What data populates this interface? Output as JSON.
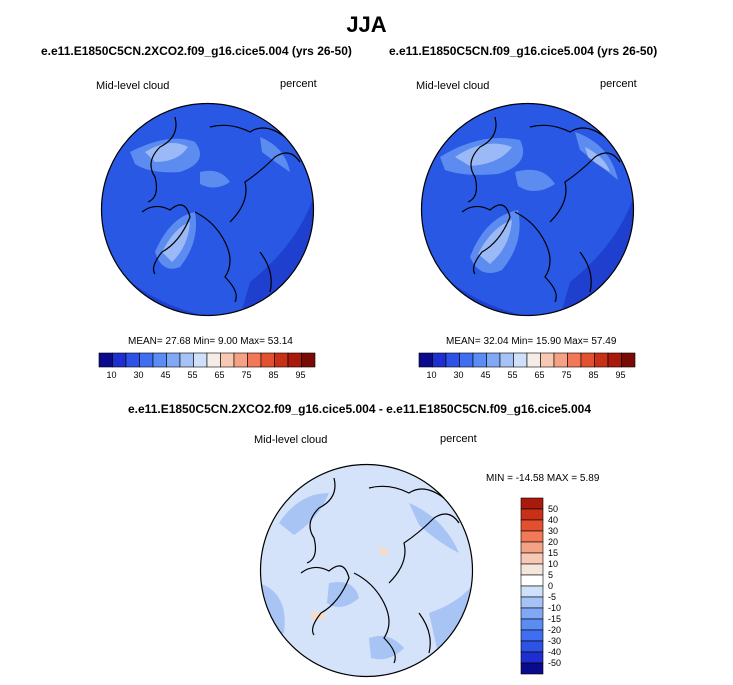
{
  "page": {
    "title": "JJA"
  },
  "panels": [
    {
      "case": "e.e11.E1850C5CN.2XCO2.f09_g16.cice5.004 (yrs 26-50)",
      "variable": "Mid-level cloud",
      "units": "percent",
      "stats": "MEAN=  27.68  Min=   9.00  Max=  53.14"
    },
    {
      "case": "e.e11.E1850C5CN.f09_g16.cice5.004 (yrs 26-50)",
      "variable": "Mid-level cloud",
      "units": "percent",
      "stats": "MEAN=  32.04  Min=  15.90  Max=  57.49"
    },
    {
      "case": "e.e11.E1850C5CN.2XCO2.f09_g16.cice5.004 - e.e11.E1850C5CN.f09_g16.cice5.004",
      "variable": "Mid-level cloud",
      "units": "percent",
      "stats": "MIN = -14.58 MAX =   5.89"
    }
  ],
  "colorbar_abs": {
    "tick_labels": [
      "10",
      "30",
      "45",
      "55",
      "65",
      "75",
      "85",
      "95"
    ],
    "colors": [
      "#0a0a8c",
      "#1f2fcf",
      "#2c52e6",
      "#3f6ef0",
      "#5b8cf2",
      "#80a8f5",
      "#a6c3f7",
      "#cfe0fa",
      "#f4ece6",
      "#f7c8b4",
      "#f5a185",
      "#f27858",
      "#e2502f",
      "#c83018",
      "#a81a0c",
      "#7a0a04"
    ]
  },
  "colorbar_diff": {
    "levels": [
      "50",
      "40",
      "30",
      "20",
      "15",
      "10",
      "5",
      "0",
      "-5",
      "-10",
      "-15",
      "-20",
      "-30",
      "-40",
      "-50"
    ],
    "colors": [
      "#a81a0c",
      "#c83018",
      "#e2502f",
      "#f27858",
      "#f5a185",
      "#f7c8b4",
      "#f4e6dc",
      "#ffffff",
      "#cfe0fa",
      "#a6c3f7",
      "#80a8f5",
      "#5b8cf2",
      "#3f6ef0",
      "#2c52e6",
      "#1f2fcf",
      "#0a0a8c"
    ]
  },
  "map_colors": {
    "abs_base": "#2858e4",
    "abs_dark": "#1f3fcf",
    "abs_light": "#5d8cf0",
    "abs_lighter": "#9ab9f6",
    "diff_base": "#d4e3fa",
    "diff_mid": "#a8c4f5",
    "diff_warm": "#f6dccd"
  }
}
